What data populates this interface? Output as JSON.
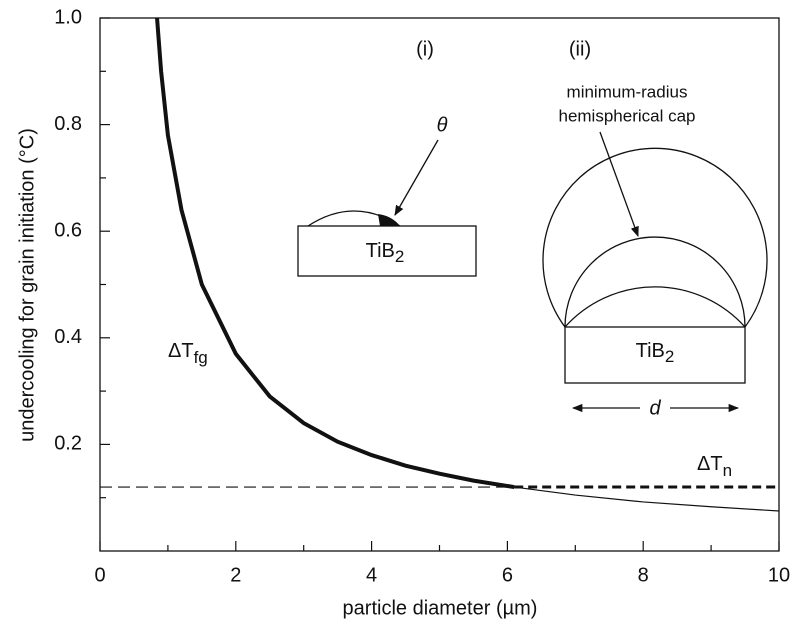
{
  "chart_data": {
    "type": "line",
    "xlabel": "particle diameter (µm)",
    "ylabel": "undercooling for grain initiation (°C)",
    "xlim": [
      0,
      10
    ],
    "ylim": [
      0,
      1
    ],
    "xticks": [
      0,
      2,
      4,
      6,
      8,
      10
    ],
    "yticks": [
      0.2,
      0.4,
      0.6,
      0.8,
      {
        "value": 1,
        "label": "1.0"
      }
    ],
    "xminor": [
      1,
      3,
      5,
      7,
      9
    ],
    "yminor": [
      0.1,
      0.3,
      0.5,
      0.7,
      0.9
    ],
    "color": "#111111",
    "series": [
      {
        "x": [
          0.84,
          0.9,
          1.0,
          1.2,
          1.5,
          2,
          2.5,
          3,
          3.5,
          4,
          4.5,
          5,
          5.5,
          6.1
        ],
        "values": [
          1.0,
          0.9,
          0.78,
          0.64,
          0.5,
          0.37,
          0.29,
          0.24,
          0.205,
          0.18,
          0.16,
          0.145,
          0.132,
          0.12
        ],
        "width": 4,
        "dash": false
      },
      {
        "x": [
          6.1,
          7,
          8,
          9,
          10
        ],
        "values": [
          0.12,
          0.105,
          0.092,
          0.083,
          0.075
        ],
        "width": 1.2,
        "dash": false
      },
      {
        "x": [
          0,
          6.1
        ],
        "values": [
          0.12,
          0.12
        ],
        "width": 1.2,
        "dash": true
      },
      {
        "x": [
          6.1,
          10
        ],
        "values": [
          0.12,
          0.12
        ],
        "width": 3,
        "dash": true
      }
    ],
    "annotations": {
      "curve_label": {
        "main": "ΔT",
        "sub": "fg"
      },
      "dashed_label": {
        "main": "ΔT",
        "sub": "n"
      },
      "panel_i": "(i)",
      "panel_ii": "(ii)",
      "theta": "θ",
      "cap_line1": "minimum-radius",
      "cap_line2": "hemispherical cap",
      "particle_i": {
        "main": "TiB",
        "sub": "2"
      },
      "particle_ii": {
        "main": "TiB",
        "sub": "2"
      },
      "diameter": "d"
    }
  }
}
